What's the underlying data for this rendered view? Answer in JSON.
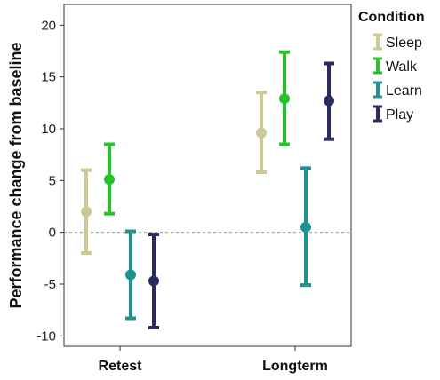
{
  "chart_data": {
    "type": "errorbar",
    "ylabel": "Performance change from baseline",
    "ylim": [
      -11,
      22
    ],
    "yticks": [
      -10,
      -5,
      0,
      5,
      10,
      15,
      20
    ],
    "yticklabels": [
      "-10",
      "-5",
      "0",
      "5",
      "10",
      "15",
      "20"
    ],
    "categories": [
      "Retest",
      "Longterm"
    ],
    "reference_line": 0,
    "grid": false,
    "legend_position": "right",
    "legend_title": "Condition",
    "series": [
      {
        "name": "Sleep",
        "color": "#cdc995",
        "means": [
          2.0,
          9.6
        ],
        "lower": [
          -2.0,
          5.8
        ],
        "upper": [
          6.0,
          13.5
        ]
      },
      {
        "name": "Walk",
        "color": "#27c12b",
        "means": [
          5.1,
          12.9
        ],
        "lower": [
          1.8,
          8.5
        ],
        "upper": [
          8.5,
          17.4
        ]
      },
      {
        "name": "Learn",
        "color": "#1c9293",
        "means": [
          -4.1,
          0.5
        ],
        "lower": [
          -8.3,
          -5.1
        ],
        "upper": [
          0.1,
          6.2
        ]
      },
      {
        "name": "Play",
        "color": "#2b2b5e",
        "means": [
          -4.7,
          12.7
        ],
        "lower": [
          -9.2,
          9.0
        ],
        "upper": [
          -0.2,
          16.3
        ]
      }
    ]
  }
}
